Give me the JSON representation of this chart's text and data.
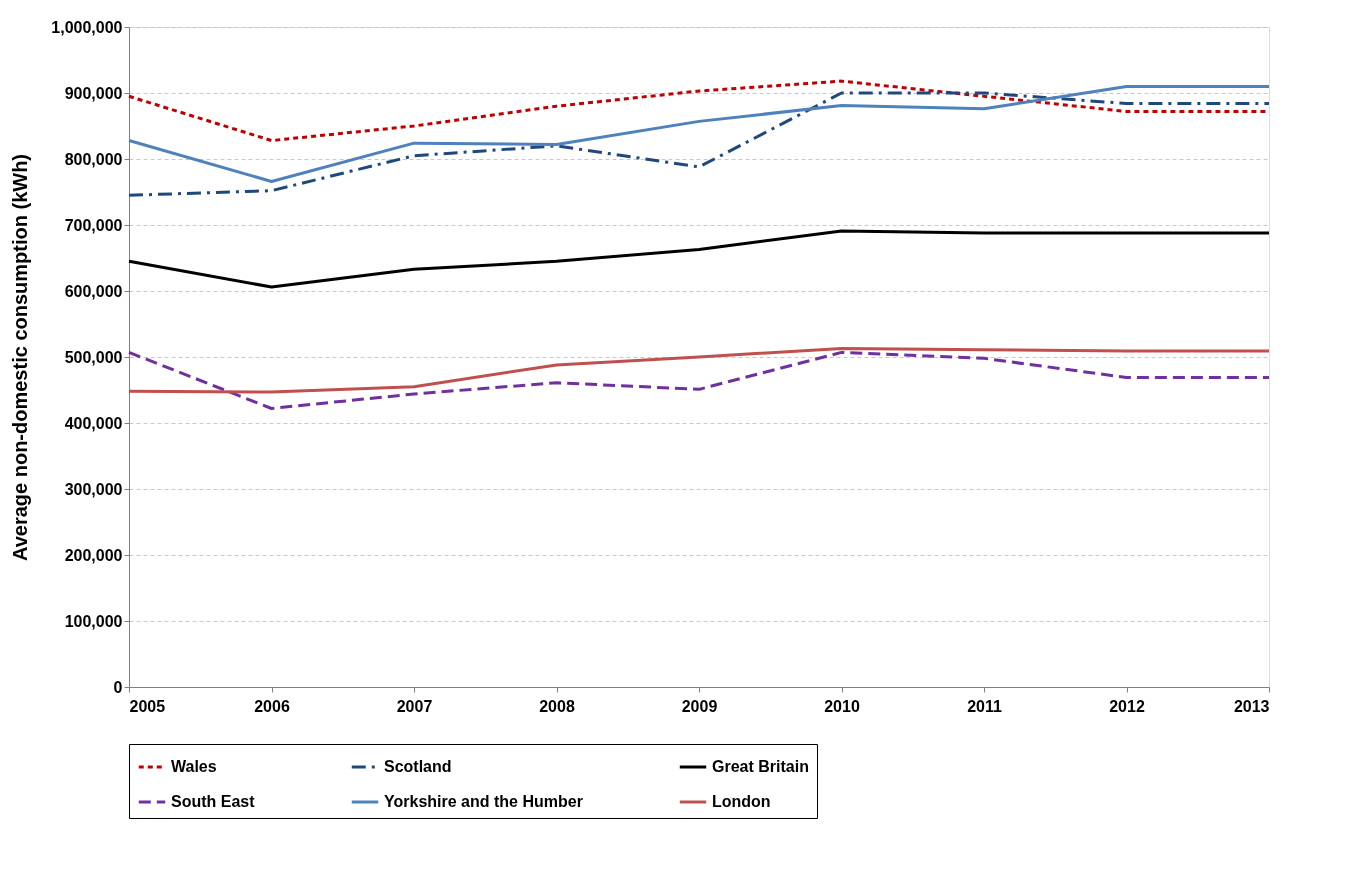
{
  "chart_data": {
    "type": "line",
    "ylabel": "Average non-domestic consumption (kWh)",
    "x": [
      2005,
      2006,
      2007,
      2008,
      2009,
      2010,
      2011,
      2012,
      2013
    ],
    "xlim": [
      2005,
      2013
    ],
    "xticks": [
      2005,
      2006,
      2007,
      2008,
      2009,
      2010,
      2011,
      2012,
      2013
    ],
    "ylim": [
      0,
      1000000
    ],
    "yticks": [
      0,
      {
        "value": 100000,
        "label": "100,000"
      },
      {
        "value": 200000,
        "label": "200,000"
      },
      {
        "value": 300000,
        "label": "300,000"
      },
      {
        "value": 400000,
        "label": "400,000"
      },
      {
        "value": 500000,
        "label": "500,000"
      },
      {
        "value": 600000,
        "label": "600,000"
      },
      {
        "value": 700000,
        "label": "700,000"
      },
      {
        "value": 800000,
        "label": "800,000"
      },
      {
        "value": 900000,
        "label": "900,000"
      },
      {
        "value": 1000000,
        "label": "1,000,000"
      }
    ],
    "grid": "y",
    "legend": "bottom",
    "marker": "none",
    "series": [
      {
        "name": "Wales",
        "color": "#c00000",
        "line_style": "dotted",
        "values": [
          895000,
          828000,
          850000,
          880000,
          903000,
          918000,
          895000,
          872000,
          872000
        ]
      },
      {
        "name": "Scotland",
        "color": "#1f497d",
        "line_style": "dashdot",
        "values": [
          745000,
          752000,
          805000,
          820000,
          788000,
          900000,
          900000,
          884000,
          884000
        ]
      },
      {
        "name": "Great Britain",
        "color": "#000000",
        "line_style": "solid",
        "values": [
          645000,
          606000,
          633000,
          645000,
          663000,
          691000,
          688000,
          688000,
          688000
        ]
      },
      {
        "name": "South East",
        "color": "#7030a0",
        "line_style": "dashed",
        "values": [
          507000,
          422000,
          444000,
          461000,
          451000,
          507000,
          498000,
          469000,
          469000
        ]
      },
      {
        "name": "Yorkshire and the Humber",
        "color": "#4f81bd",
        "line_style": "solid",
        "values": [
          828000,
          766000,
          824000,
          822000,
          857000,
          881000,
          876000,
          910000,
          910000
        ]
      },
      {
        "name": "London",
        "color": "#c0504d",
        "line_style": "solid",
        "values": [
          448000,
          447000,
          455000,
          488000,
          500000,
          513000,
          511000,
          509000,
          509000
        ]
      }
    ]
  }
}
